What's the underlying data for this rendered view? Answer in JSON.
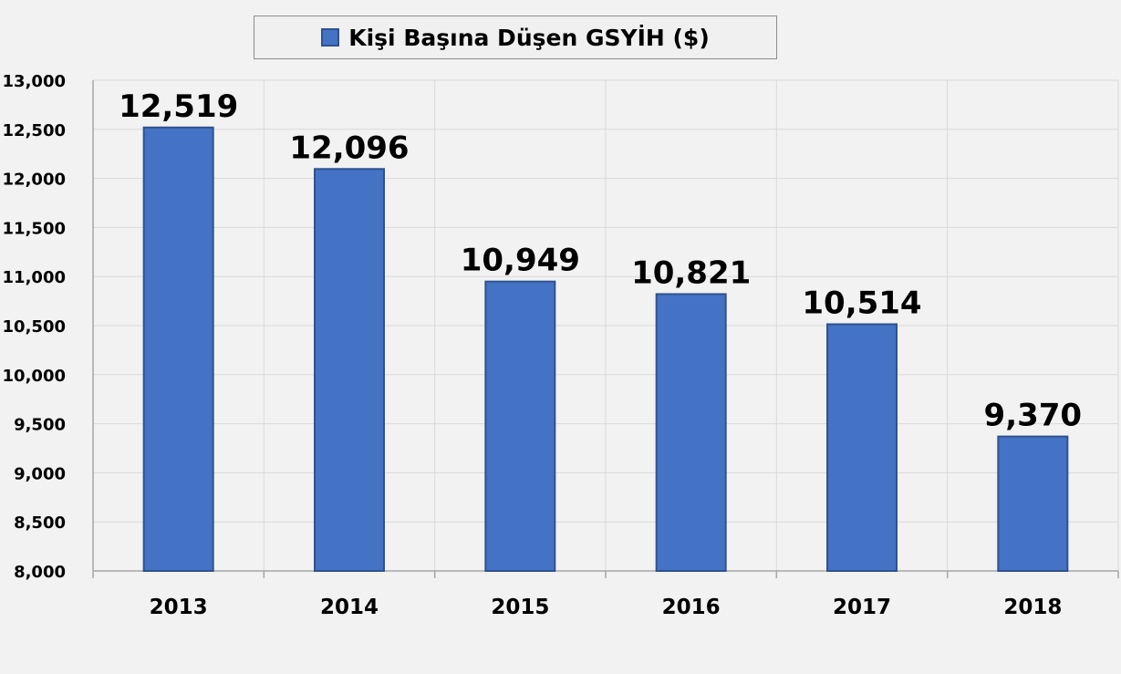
{
  "chart_data": {
    "type": "bar",
    "categories": [
      "2013",
      "2014",
      "2015",
      "2016",
      "2017",
      "2018"
    ],
    "series": [
      {
        "name": "Kişi Başına Düşen GSYİH ($)",
        "values": [
          12519,
          12096,
          10949,
          10821,
          10514,
          9370
        ],
        "labels": [
          "12,519",
          "12,096",
          "10,949",
          "10,821",
          "10,514",
          "9,370"
        ]
      }
    ],
    "ylim": [
      8000,
      13000
    ],
    "yticks": [
      8000,
      8500,
      9000,
      9500,
      10000,
      10500,
      11000,
      11500,
      12000,
      12500,
      13000
    ],
    "ytick_labels": [
      "8,000",
      "8,500",
      "9,000",
      "9,500",
      "10,000",
      "10,500",
      "11,000",
      "11,500",
      "12,000",
      "12,500",
      "13,000"
    ],
    "grid": true,
    "legend_position": "top-center",
    "colors": {
      "bar_fill": "#4472c4",
      "bar_edge": "#2f528f",
      "grid": "#d9d9d9",
      "background": "#f2f2f2"
    }
  }
}
